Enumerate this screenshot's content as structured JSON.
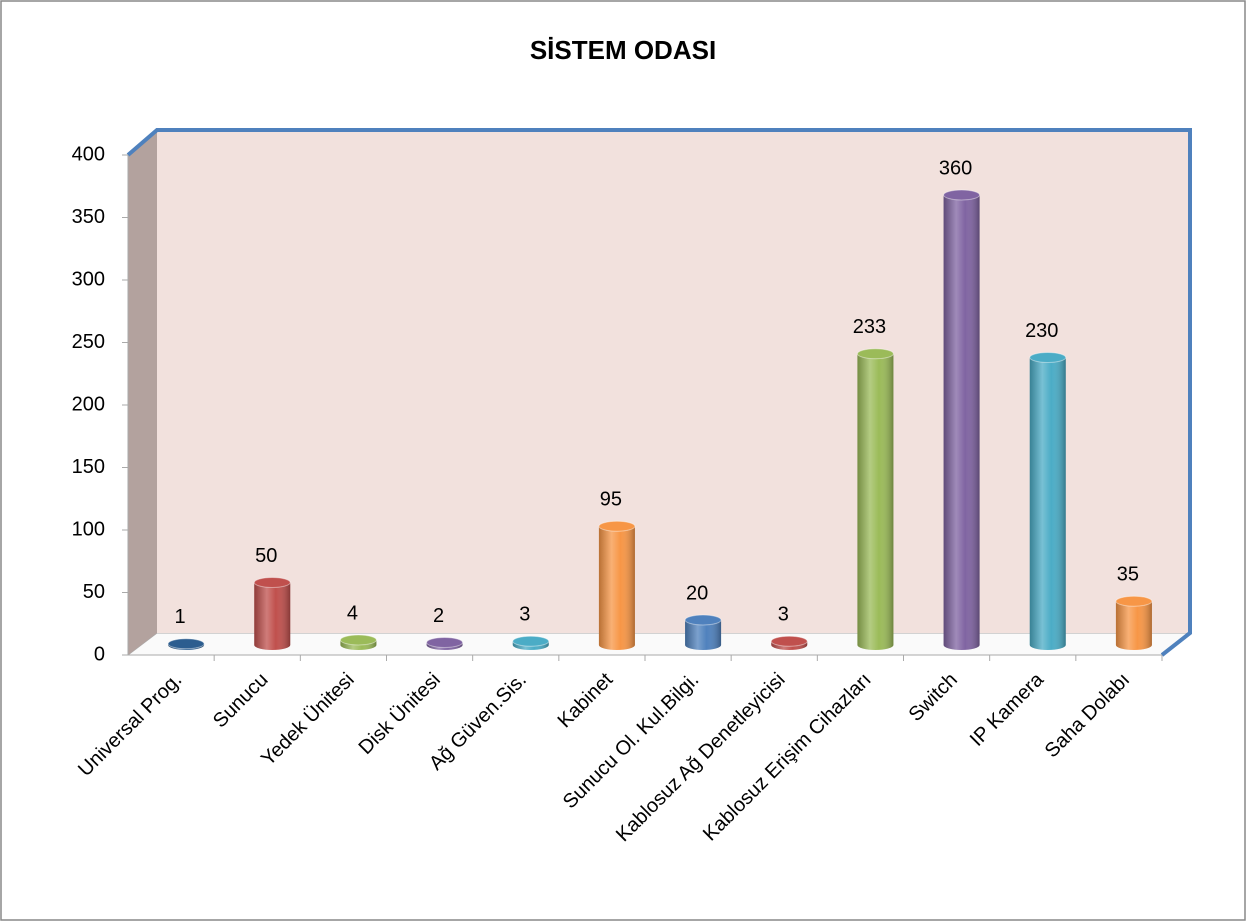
{
  "chart_data": {
    "type": "bar",
    "title": "SİSTEM ODASI",
    "categories": [
      "Universal Prog.",
      "Sunucu",
      "Yedek Ünitesi",
      "Disk Ünitesi",
      "Ağ Güven.Sis.",
      "Kabinet",
      "Sunucu Ol. Kul.Bilgi.",
      "Kablosuz Ağ Denetleyicisi",
      "Kablosuz Erişim Cihazları",
      "Switch",
      "IP Kamera",
      "Saha Dolabı"
    ],
    "values": [
      1,
      50,
      4,
      2,
      3,
      95,
      20,
      3,
      233,
      360,
      230,
      35
    ],
    "colors": [
      "#2c5d8f",
      "#c0504d",
      "#9bbb59",
      "#8064a2",
      "#4bacc6",
      "#f79646",
      "#4f81bd",
      "#c0504d",
      "#9bbb59",
      "#8064a2",
      "#4bacc6",
      "#f79646"
    ],
    "ylim": [
      0,
      400
    ],
    "yticks": [
      0,
      50,
      100,
      150,
      200,
      250,
      300,
      350,
      400
    ]
  }
}
